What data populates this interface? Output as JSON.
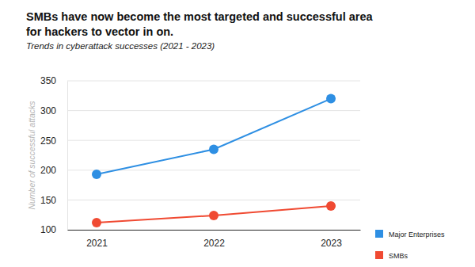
{
  "chart_data": {
    "type": "line",
    "title": "SMBs have now become the most targeted and successful area for hackers to vector in on.",
    "subtitle": "Trends in cyberattack successes (2021 - 2023)",
    "y_label": "Number of successful attacks",
    "categories": [
      "2021",
      "2022",
      "2023"
    ],
    "series": [
      {
        "name": "Major Enterprises",
        "color": "#2e8fe3",
        "marker": "circle",
        "values": [
          193,
          235,
          320
        ]
      },
      {
        "name": "SMBs",
        "color": "#f04a32",
        "marker": "circle",
        "values": [
          112,
          124,
          140
        ]
      }
    ],
    "ylim": [
      100,
      350
    ],
    "yticks": [
      100,
      150,
      200,
      250,
      300,
      350
    ],
    "grid": true,
    "legend": "lower right"
  }
}
